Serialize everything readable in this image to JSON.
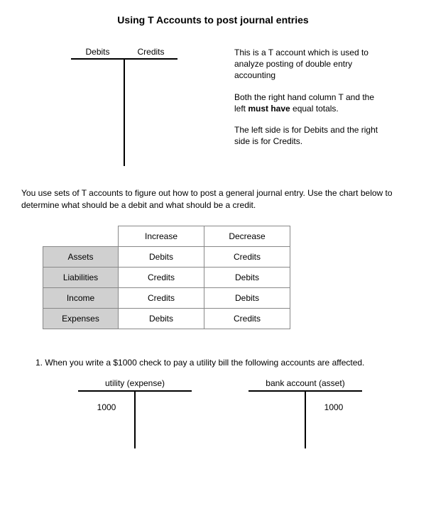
{
  "title": "Using T Accounts to post journal entries",
  "main_t": {
    "debit_label": "Debits",
    "credit_label": "Credits"
  },
  "description": {
    "p1": "This is a T account which is used to analyze posting of double entry accounting",
    "p2_pre": "Both the right hand column T and the left ",
    "p2_bold": "must have",
    "p2_post": " equal totals.",
    "p3": "The left side is for Debits and the right side is for Credits."
  },
  "instructions": "You use sets of T accounts to figure out how to post a general journal entry. Use the chart below to determine what should be a debit and what should be a credit.",
  "table": {
    "col_increase": "Increase",
    "col_decrease": "Decrease",
    "rows": [
      {
        "label": "Assets",
        "inc": "Debits",
        "dec": "Credits"
      },
      {
        "label": "Liabilities",
        "inc": "Credits",
        "dec": "Debits"
      },
      {
        "label": "Income",
        "inc": "Credits",
        "dec": "Debits"
      },
      {
        "label": "Expenses",
        "inc": "Debits",
        "dec": "Credits"
      }
    ]
  },
  "example": {
    "text": "1.  When you write a $1000 check to pay a utility bill the following accounts are affected.",
    "left": {
      "label": "utility (expense)",
      "debit": "1000",
      "credit": ""
    },
    "right": {
      "label": "bank account (asset)",
      "debit": "",
      "credit": "1000"
    }
  },
  "style": {
    "background": "#ffffff",
    "text_color": "#000000",
    "table_header_bg": "#d0d0d0",
    "table_border": "#888888",
    "line_color": "#000000",
    "font_family": "Arial",
    "title_fontsize": 14,
    "body_fontsize": 12
  }
}
